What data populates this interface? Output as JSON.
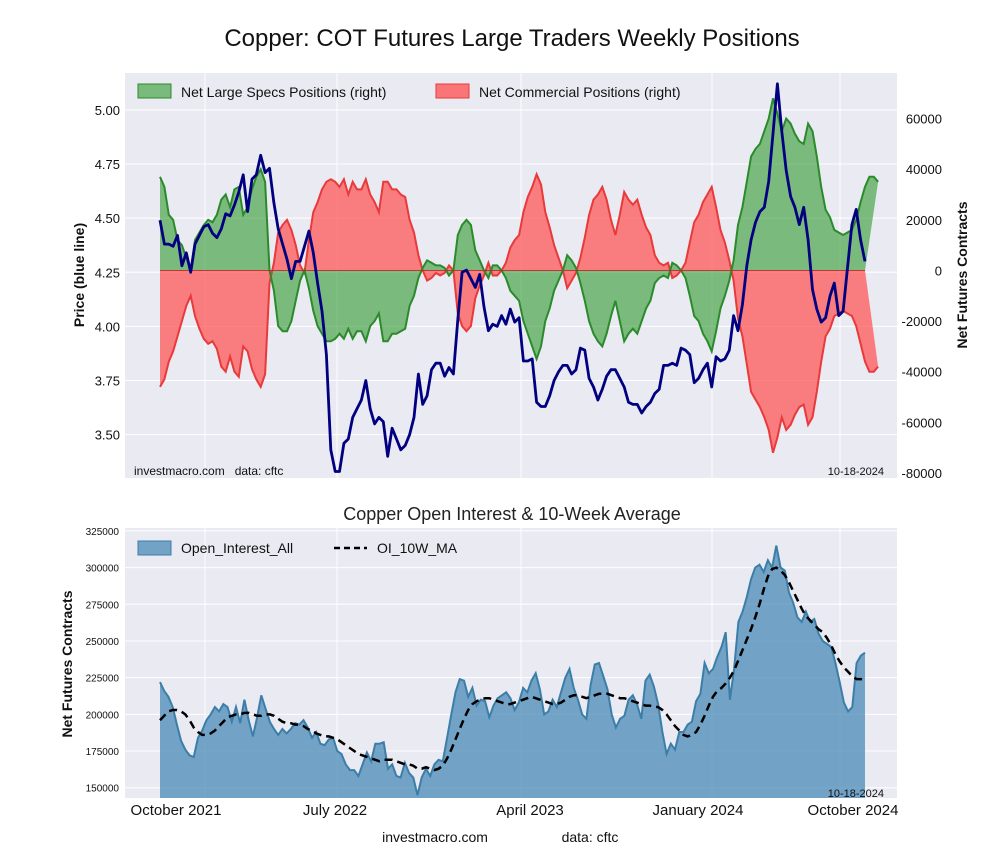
{
  "page": {
    "title": "Copper: COT Futures Large Traders Weekly Positions",
    "footer_left": "investmacro.com",
    "footer_right": "data: cftc"
  },
  "colors": {
    "panel_bg": "#eaeaf2",
    "grid": "#ffffff",
    "price_line": "#000080",
    "specs_fill": "#2e9a2e",
    "specs_line": "#2b8a2b",
    "comm_fill": "#ff4d4d",
    "comm_line": "#e83a3a",
    "oi_fill": "#4a8ab5",
    "oi_line": "#3b7ea8",
    "ma_line": "#000000"
  },
  "chart_data": [
    {
      "type": "line+area",
      "title": "Copper: COT Futures Large Traders Weekly Positions",
      "ylabel": "Price (blue line)",
      "ylabel_right": "Net Futures Contracts",
      "ylim": [
        3.3,
        5.17
      ],
      "ylim_right": [
        -82000,
        78000
      ],
      "yticks": [
        "3.50",
        "3.75",
        "4.00",
        "4.25",
        "4.50",
        "4.75",
        "5.00"
      ],
      "yticks_right": [
        "-80000",
        "-60000",
        "-40000",
        "-20000",
        "0",
        "20000",
        "40000",
        "60000"
      ],
      "legend": [
        "Net Large Specs Positions (right)",
        "Net Commercial Positions (right)"
      ],
      "legend_position": "top-left",
      "watermark": "investmacro.com   data: cftc",
      "date_label": "10-18-2024",
      "x_start": "2021-10-05",
      "x_end": "2024-10-18",
      "series": [
        {
          "name": "Price",
          "values": [
            4.49,
            4.38,
            4.38,
            4.37,
            4.42,
            4.28,
            4.34,
            4.25,
            4.38,
            4.42,
            4.46,
            4.47,
            4.43,
            4.41,
            4.45,
            4.52,
            4.51,
            4.56,
            4.62,
            4.7,
            4.53,
            4.68,
            4.7,
            4.79,
            4.71,
            4.73,
            4.57,
            4.45,
            4.38,
            4.31,
            4.22,
            4.3,
            4.3,
            4.37,
            4.44,
            4.34,
            4.2,
            4.07,
            3.87,
            3.43,
            3.33,
            3.33,
            3.46,
            3.48,
            3.58,
            3.62,
            3.66,
            3.75,
            3.62,
            3.55,
            3.58,
            3.56,
            3.4,
            3.53,
            3.48,
            3.43,
            3.45,
            3.5,
            3.58,
            3.78,
            3.64,
            3.68,
            3.8,
            3.83,
            3.83,
            3.77,
            3.81,
            3.78,
            4.03,
            4.25,
            4.26,
            4.22,
            4.18,
            4.24,
            4.09,
            3.98,
            4.01,
            4.0,
            4.05,
            4.01,
            4.08,
            4.02,
            4.04,
            3.84,
            3.84,
            3.85,
            3.65,
            3.63,
            3.63,
            3.68,
            3.75,
            3.79,
            3.82,
            3.82,
            3.78,
            3.8,
            3.9,
            3.89,
            3.76,
            3.72,
            3.66,
            3.71,
            3.77,
            3.8,
            3.8,
            3.76,
            3.72,
            3.65,
            3.64,
            3.64,
            3.6,
            3.63,
            3.65,
            3.69,
            3.71,
            3.82,
            3.82,
            3.83,
            3.82,
            3.9,
            3.89,
            3.87,
            3.74,
            3.76,
            3.8,
            3.83,
            3.72,
            3.86,
            3.84,
            3.85,
            3.89,
            4.05,
            3.98,
            4.1,
            4.28,
            4.4,
            4.48,
            4.53,
            4.55,
            4.67,
            4.89,
            5.12,
            4.9,
            4.72,
            4.6,
            4.55,
            4.47,
            4.55,
            4.4,
            4.17,
            4.08,
            4.02,
            4.04,
            4.14,
            4.2,
            4.05,
            4.07,
            4.27,
            4.47,
            4.54,
            4.4,
            4.3
          ]
        },
        {
          "name": "Net Large Specs Positions (right)",
          "values": [
            37000,
            33000,
            22000,
            20000,
            12000,
            10000,
            5000,
            0,
            12000,
            15000,
            18000,
            20000,
            19000,
            22000,
            28000,
            30000,
            25000,
            32000,
            33000,
            22000,
            25000,
            32000,
            37000,
            40000,
            35000,
            0,
            -8000,
            -22000,
            -24000,
            -24000,
            -20000,
            -12000,
            -4000,
            0,
            -7000,
            -16000,
            -22000,
            -25000,
            -28000,
            -28000,
            -27000,
            -25000,
            -27000,
            -23000,
            -27000,
            -24000,
            -24000,
            -28000,
            -22000,
            -20000,
            -17000,
            -28000,
            -28000,
            -25000,
            -25000,
            -24000,
            -23000,
            -14000,
            -10000,
            -3000,
            1000,
            4000,
            3000,
            2000,
            2000,
            1000,
            -2000,
            0,
            14000,
            18000,
            20000,
            18000,
            8000,
            4000,
            0,
            -3000,
            2000,
            2000,
            0,
            -3000,
            -8000,
            -10000,
            -12000,
            -20000,
            -25000,
            -30000,
            -35000,
            -30000,
            -20000,
            -15000,
            -8000,
            -4000,
            0,
            6000,
            4000,
            1000,
            -5000,
            -12000,
            -20000,
            -25000,
            -28000,
            -30000,
            -25000,
            -18000,
            -12000,
            -20000,
            -28000,
            -25000,
            -23000,
            -25000,
            -20000,
            -15000,
            -12000,
            -5000,
            -3000,
            -2000,
            -3000,
            3000,
            2000,
            0,
            -3000,
            -10000,
            -18000,
            -20000,
            -25000,
            -28000,
            -32000,
            -24000,
            -15000,
            -10000,
            -4000,
            4000,
            18000,
            25000,
            35000,
            45000,
            48000,
            50000,
            55000,
            60000,
            68000,
            62000,
            55000,
            60000,
            58000,
            54000,
            51000,
            50000,
            58000,
            55000,
            45000,
            33000,
            24000,
            21000,
            16000,
            15000,
            14000,
            15000,
            16000,
            20000,
            27000,
            33000,
            37000,
            37000,
            35000
          ]
        },
        {
          "name": "Net Commercial Positions (right)",
          "values": [
            -46000,
            -43000,
            -36000,
            -32000,
            -26000,
            -20000,
            -14000,
            -10000,
            -18000,
            -23000,
            -27000,
            -29000,
            -28000,
            -31000,
            -38000,
            -40000,
            -34000,
            -40000,
            -42000,
            -30000,
            -32000,
            -39000,
            -43000,
            -46000,
            -41000,
            -5000,
            3000,
            15000,
            18000,
            20000,
            16000,
            10000,
            2000,
            -1000,
            12000,
            23000,
            27000,
            32000,
            35000,
            36000,
            35000,
            33000,
            36000,
            30000,
            35000,
            32000,
            32000,
            36000,
            30000,
            27000,
            23000,
            35000,
            35000,
            32000,
            32000,
            30000,
            29000,
            20000,
            15000,
            6000,
            0,
            -4000,
            -3000,
            -1000,
            -2000,
            -1000,
            2000,
            0,
            -17000,
            -22000,
            -24000,
            -22000,
            -11000,
            -6000,
            -2000,
            3000,
            -2000,
            -2000,
            0,
            3000,
            9000,
            12000,
            14000,
            23000,
            29000,
            33000,
            38000,
            34000,
            23000,
            17000,
            10000,
            5000,
            0,
            -7000,
            -4000,
            -1000,
            5000,
            13000,
            22000,
            28000,
            30000,
            33000,
            28000,
            20000,
            14000,
            22000,
            31000,
            28000,
            26000,
            28000,
            22000,
            17000,
            14000,
            6000,
            3000,
            2000,
            3000,
            -3000,
            -2000,
            0,
            3000,
            11000,
            19000,
            22000,
            27000,
            30000,
            33000,
            25000,
            16000,
            11000,
            4000,
            -4000,
            -19000,
            -26000,
            -37000,
            -48000,
            -51000,
            -54000,
            -58000,
            -63000,
            -72000,
            -66000,
            -58000,
            -63000,
            -61000,
            -57000,
            -54000,
            -53000,
            -61000,
            -58000,
            -48000,
            -36000,
            -26000,
            -23000,
            -18000,
            -17000,
            -16000,
            -17000,
            -18000,
            -22000,
            -29000,
            -36000,
            -40000,
            -40000,
            -38000
          ]
        }
      ]
    },
    {
      "type": "area+line",
      "title": "Copper Open Interest & 10-Week Average",
      "ylabel": "Net Futures Contracts",
      "ylim": [
        143000,
        327000
      ],
      "yticks": [
        "150000",
        "175000",
        "200000",
        "225000",
        "250000",
        "275000",
        "300000",
        "325000"
      ],
      "xticks": [
        "October 2021",
        "July 2022",
        "April 2023",
        "January 2024",
        "October 2024"
      ],
      "legend": [
        "Open_Interest_All",
        "OI_10W_MA"
      ],
      "legend_position": "top-left",
      "date_label": "10-18-2024",
      "series": [
        {
          "name": "Open_Interest_All",
          "values": [
            222000,
            216000,
            212000,
            205000,
            193000,
            182000,
            176000,
            172000,
            171000,
            184000,
            189000,
            196000,
            200000,
            205000,
            202000,
            207000,
            205000,
            195000,
            205000,
            194000,
            210000,
            196000,
            185000,
            198000,
            213000,
            204000,
            195000,
            190000,
            186000,
            190000,
            187000,
            190000,
            194000,
            193000,
            196000,
            191000,
            184000,
            188000,
            180000,
            179000,
            183000,
            184000,
            175000,
            173000,
            166000,
            162000,
            162000,
            158000,
            166000,
            174000,
            168000,
            180000,
            180000,
            181000,
            163000,
            166000,
            158000,
            157000,
            167000,
            160000,
            157000,
            145000,
            157000,
            163000,
            158000,
            166000,
            169000,
            168000,
            184000,
            200000,
            215000,
            224000,
            223000,
            212000,
            218000,
            206000,
            210000,
            209000,
            198000,
            206000,
            211000,
            213000,
            215000,
            211000,
            203000,
            208000,
            218000,
            215000,
            223000,
            228000,
            217000,
            200000,
            202000,
            210000,
            205000,
            215000,
            225000,
            231000,
            218000,
            210000,
            200000,
            197000,
            220000,
            234000,
            235000,
            226000,
            217000,
            200000,
            191000,
            197000,
            199000,
            210000,
            213000,
            207000,
            197000,
            223000,
            227000,
            219000,
            207000,
            188000,
            173000,
            180000,
            176000,
            188000,
            188000,
            193000,
            195000,
            209000,
            214000,
            235000,
            228000,
            231000,
            239000,
            246000,
            256000,
            210000,
            231000,
            263000,
            270000,
            280000,
            292000,
            300000,
            302000,
            297000,
            305000,
            300000,
            315000,
            300000,
            298000,
            283000,
            276000,
            266000,
            263000,
            270000,
            263000,
            265000,
            255000,
            250000,
            248000,
            246000,
            235000,
            222000,
            208000,
            202000,
            205000,
            235000,
            240000,
            242000
          ]
        },
        {
          "name": "OI_10W_MA",
          "values": [
            196000,
            199000,
            202000,
            203000,
            203000,
            202000,
            200000,
            196000,
            191000,
            188000,
            186000,
            186000,
            187000,
            189000,
            192000,
            195000,
            198000,
            199000,
            200000,
            200000,
            201000,
            201000,
            200000,
            199000,
            199000,
            200000,
            200000,
            199000,
            197000,
            195000,
            194000,
            194000,
            193000,
            193000,
            192000,
            190000,
            189000,
            187000,
            186000,
            185000,
            185000,
            184000,
            183000,
            181000,
            179000,
            177000,
            175000,
            173000,
            172000,
            171000,
            170000,
            169000,
            168000,
            169000,
            169000,
            169000,
            168000,
            167000,
            166000,
            166000,
            165000,
            163000,
            163000,
            164000,
            163000,
            162000,
            163000,
            165000,
            170000,
            176000,
            183000,
            190000,
            197000,
            203000,
            207000,
            209000,
            210000,
            211000,
            211000,
            210000,
            209000,
            208000,
            207000,
            207000,
            208000,
            209000,
            210000,
            211000,
            212000,
            211000,
            210000,
            209000,
            208000,
            207000,
            207000,
            208000,
            210000,
            212000,
            213000,
            213000,
            212000,
            211000,
            212000,
            213000,
            214000,
            214000,
            214000,
            213000,
            212000,
            211000,
            211000,
            210000,
            209000,
            208000,
            207000,
            206000,
            206000,
            205000,
            205000,
            203000,
            200000,
            196000,
            192000,
            189000,
            186000,
            185000,
            186000,
            188000,
            193000,
            199000,
            206000,
            212000,
            216000,
            218000,
            221000,
            225000,
            230000,
            237000,
            244000,
            251000,
            258000,
            266000,
            275000,
            285000,
            294000,
            299000,
            300000,
            298000,
            295000,
            290000,
            284000,
            278000,
            272000,
            267000,
            264000,
            261000,
            258000,
            256000,
            252000,
            247000,
            241000,
            236000,
            232000,
            229000,
            226000,
            224000,
            224000,
            223000
          ]
        }
      ]
    }
  ]
}
